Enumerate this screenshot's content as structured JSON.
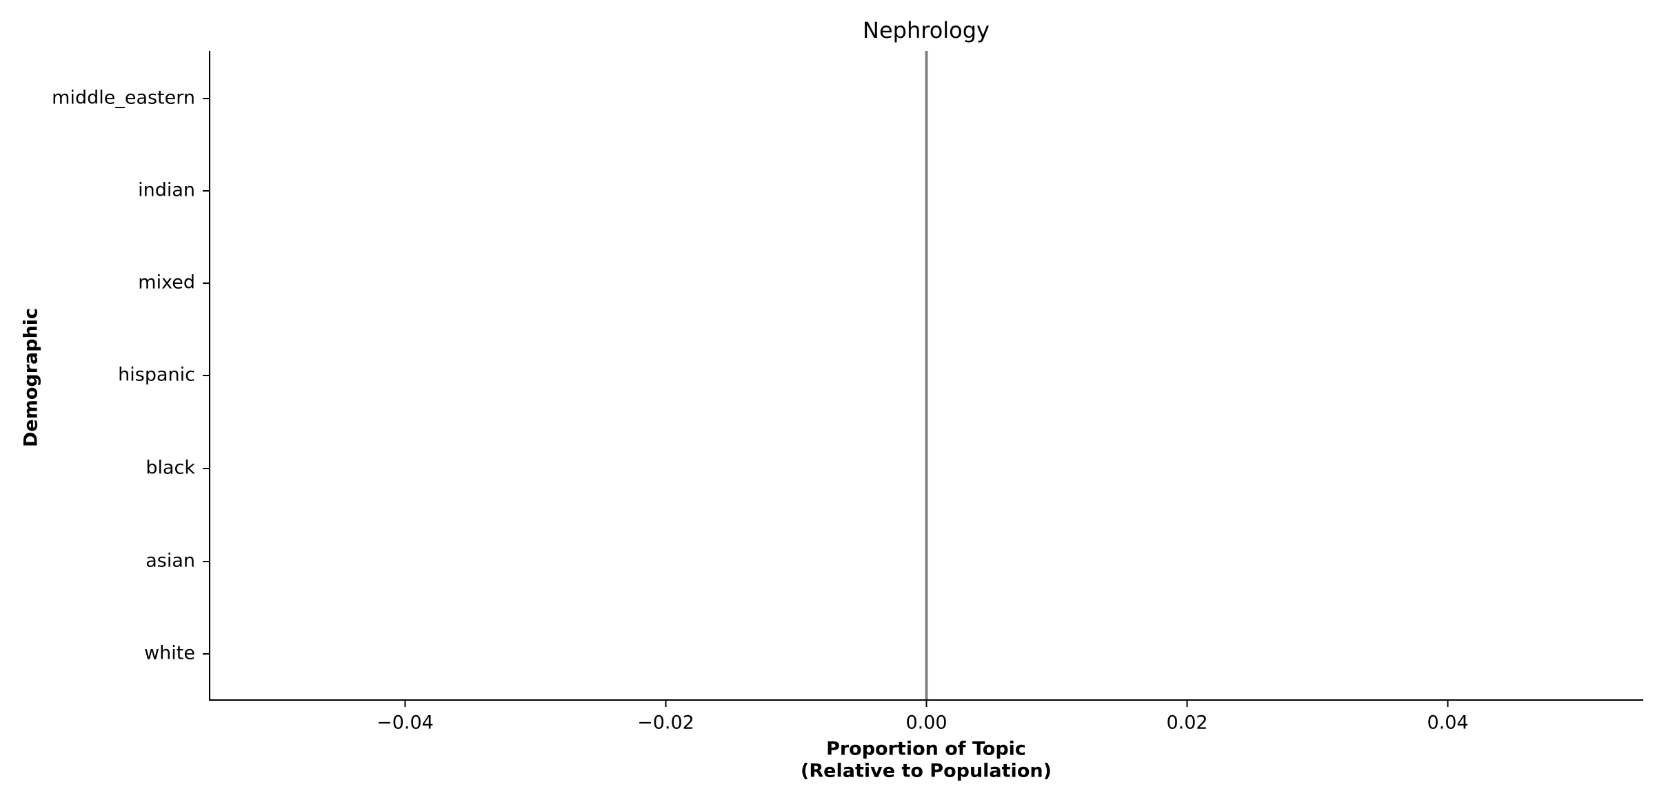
{
  "chart_data": {
    "type": "bar",
    "orientation": "horizontal",
    "title": "Nephrology",
    "xlabel_line1": "Proportion of Topic",
    "xlabel_line2": "(Relative to Population)",
    "ylabel": "Demographic",
    "categories": [
      "middle_eastern",
      "indian",
      "mixed",
      "hispanic",
      "black",
      "asian",
      "white"
    ],
    "values": [
      0,
      0,
      0,
      0,
      0,
      0,
      0
    ],
    "xlim": [
      -0.055,
      0.055
    ],
    "x_ticks": [
      -0.04,
      -0.02,
      0.0,
      0.02,
      0.04
    ],
    "x_tick_labels": [
      "−0.04",
      "−0.02",
      "0.00",
      "0.02",
      "0.04"
    ],
    "reference_line_x": 0.0,
    "grid": false,
    "legend": "none",
    "colors": {
      "axis": "#000000",
      "reference_line": "#808080"
    }
  }
}
